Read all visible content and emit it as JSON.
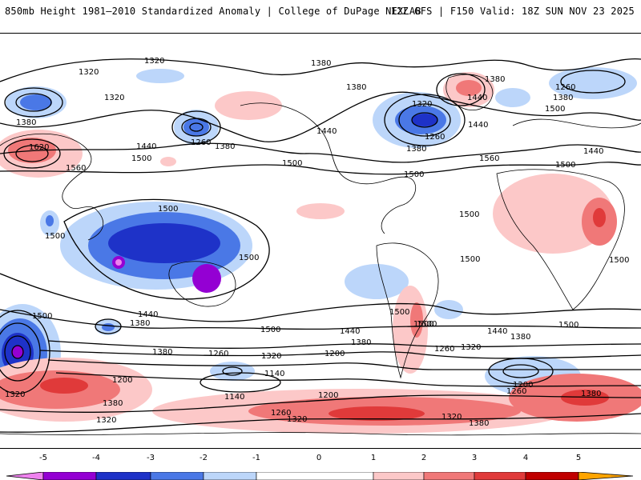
{
  "header": {
    "title_left": "850mb Height 1981–2010 Standardized Anomaly | College of DuPage NEXLAB",
    "title_right": "12Z GFS | F150 Valid: 18Z SUN NOV 23 2025"
  },
  "colors": {
    "neg5": "#ee82ee",
    "neg4": "#9400d3",
    "neg3": "#1e32c8",
    "neg2": "#4a78e6",
    "neg1": "#bcd6fa",
    "zero": "#ffffff",
    "pos1": "#fcc8c8",
    "pos2": "#f07878",
    "pos3": "#e03a3a",
    "pos4": "#c00000",
    "pos5": "#ffa500",
    "land": "#000000"
  },
  "legend": {
    "ticks": [
      "-5",
      "-4",
      "-3",
      "-2",
      "-1",
      "0",
      "1",
      "2",
      "3",
      "4",
      "5"
    ]
  },
  "contour_labels": [
    "1320",
    "1380",
    "1320",
    "1320",
    "1380",
    "1620",
    "1560",
    "1260",
    "1380",
    "1440",
    "1500",
    "1380",
    "1320",
    "1380",
    "1440",
    "1260",
    "1380",
    "1500",
    "1440",
    "1380",
    "1260",
    "1440",
    "1560",
    "1500",
    "1440",
    "1500",
    "1500",
    "1500",
    "1500",
    "1500",
    "1500",
    "1500",
    "1440",
    "1380",
    "1500",
    "1500",
    "1500",
    "1440",
    "1380",
    "1500",
    "1380",
    "1260",
    "1320",
    "1200",
    "1140",
    "1140",
    "1200",
    "1380",
    "1320",
    "1260",
    "1320",
    "1200",
    "1320",
    "1500",
    "1440",
    "1380",
    "1320",
    "1260",
    "1200",
    "1260",
    "1380",
    "1320",
    "1380",
    "1500",
    "1500"
  ]
}
